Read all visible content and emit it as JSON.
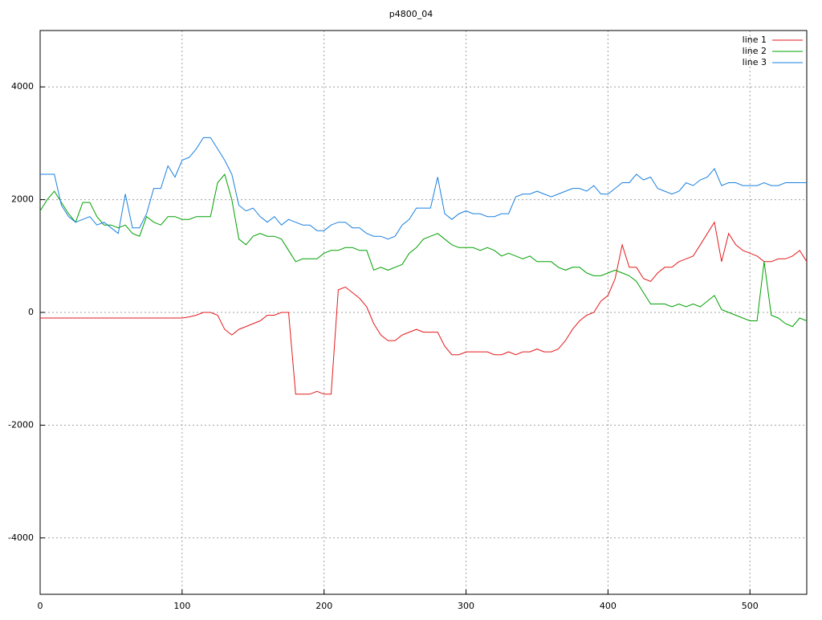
{
  "chart_data": {
    "type": "line",
    "title": "p4800_04",
    "x": [
      0,
      5,
      10,
      15,
      20,
      25,
      30,
      35,
      40,
      45,
      50,
      55,
      60,
      65,
      70,
      75,
      80,
      85,
      90,
      95,
      100,
      105,
      110,
      115,
      120,
      125,
      130,
      135,
      140,
      145,
      150,
      155,
      160,
      165,
      170,
      175,
      180,
      185,
      190,
      195,
      200,
      205,
      210,
      215,
      220,
      225,
      230,
      235,
      240,
      245,
      250,
      255,
      260,
      265,
      270,
      275,
      280,
      285,
      290,
      295,
      300,
      305,
      310,
      315,
      320,
      325,
      330,
      335,
      340,
      345,
      350,
      355,
      360,
      365,
      370,
      375,
      380,
      385,
      390,
      395,
      400,
      405,
      410,
      415,
      420,
      425,
      430,
      435,
      440,
      445,
      450,
      455,
      460,
      465,
      470,
      475,
      480,
      485,
      490,
      495,
      500,
      505,
      510,
      515,
      520,
      525,
      530,
      535,
      540
    ],
    "series": [
      {
        "name": "line 1",
        "color": "#e41a1c",
        "values": [
          -100,
          -100,
          -100,
          -100,
          -100,
          -100,
          -100,
          -100,
          -100,
          -100,
          -100,
          -100,
          -100,
          -100,
          -100,
          -100,
          -100,
          -100,
          -100,
          -100,
          -100,
          -80,
          -50,
          0,
          0,
          -50,
          -300,
          -400,
          -300,
          -250,
          -200,
          -150,
          -50,
          -50,
          0,
          0,
          -1450,
          -1450,
          -1450,
          -1400,
          -1450,
          -1450,
          400,
          450,
          350,
          250,
          100,
          -200,
          -400,
          -500,
          -500,
          -400,
          -350,
          -300,
          -350,
          -350,
          -350,
          -600,
          -750,
          -750,
          -700,
          -700,
          -700,
          -700,
          -750,
          -750,
          -700,
          -750,
          -700,
          -700,
          -650,
          -700,
          -700,
          -650,
          -500,
          -300,
          -150,
          -50,
          0,
          200,
          300,
          600,
          1200,
          800,
          800,
          600,
          550,
          700,
          800,
          800,
          900,
          950,
          1000,
          1200,
          1400,
          1600,
          900,
          1400,
          1200,
          1100,
          1050,
          1000,
          900,
          900,
          950,
          950,
          1000,
          1100,
          900
        ]
      },
      {
        "name": "line 2",
        "color": "#00a000",
        "values": [
          1800,
          2000,
          2150,
          1950,
          1750,
          1600,
          1950,
          1950,
          1700,
          1550,
          1550,
          1500,
          1550,
          1400,
          1350,
          1700,
          1600,
          1550,
          1700,
          1700,
          1650,
          1650,
          1700,
          1700,
          1700,
          2300,
          2450,
          2000,
          1300,
          1200,
          1350,
          1400,
          1350,
          1350,
          1300,
          1100,
          900,
          950,
          950,
          950,
          1050,
          1100,
          1100,
          1150,
          1150,
          1100,
          1100,
          750,
          800,
          750,
          800,
          850,
          1050,
          1150,
          1300,
          1350,
          1400,
          1300,
          1200,
          1150,
          1150,
          1150,
          1100,
          1150,
          1100,
          1000,
          1050,
          1000,
          950,
          1000,
          900,
          900,
          900,
          800,
          750,
          800,
          800,
          700,
          650,
          650,
          700,
          750,
          700,
          650,
          550,
          350,
          150,
          150,
          150,
          100,
          150,
          100,
          150,
          100,
          200,
          300,
          50,
          0,
          -50,
          -100,
          -150,
          -150,
          900,
          -50,
          -100,
          -200,
          -250,
          -100,
          -150
        ]
      },
      {
        "name": "line 3",
        "color": "#1a80e0",
        "values": [
          2450,
          2450,
          2450,
          1900,
          1700,
          1600,
          1650,
          1700,
          1550,
          1600,
          1500,
          1400,
          2100,
          1500,
          1500,
          1750,
          2200,
          2200,
          2600,
          2400,
          2700,
          2750,
          2900,
          3100,
          3100,
          2900,
          2700,
          2450,
          1900,
          1800,
          1850,
          1700,
          1600,
          1700,
          1550,
          1650,
          1600,
          1550,
          1550,
          1450,
          1450,
          1550,
          1600,
          1600,
          1500,
          1500,
          1400,
          1350,
          1350,
          1300,
          1350,
          1550,
          1650,
          1850,
          1850,
          1850,
          2400,
          1750,
          1650,
          1750,
          1800,
          1750,
          1750,
          1700,
          1700,
          1750,
          1750,
          2050,
          2100,
          2100,
          2150,
          2100,
          2050,
          2100,
          2150,
          2200,
          2200,
          2150,
          2250,
          2100,
          2100,
          2200,
          2300,
          2300,
          2450,
          2350,
          2400,
          2200,
          2150,
          2100,
          2150,
          2300,
          2250,
          2350,
          2400,
          2550,
          2250,
          2300,
          2300,
          2250,
          2250,
          2250,
          2300,
          2250,
          2250,
          2300,
          2300,
          2300,
          2300
        ]
      }
    ],
    "xlim": [
      0,
      540
    ],
    "xticks": [
      0,
      100,
      200,
      300,
      400,
      500
    ],
    "ylim": [
      -5000,
      5000
    ],
    "yticks": [
      -4000,
      -2000,
      0,
      2000,
      4000
    ],
    "grid": true,
    "legend": "top-right"
  }
}
